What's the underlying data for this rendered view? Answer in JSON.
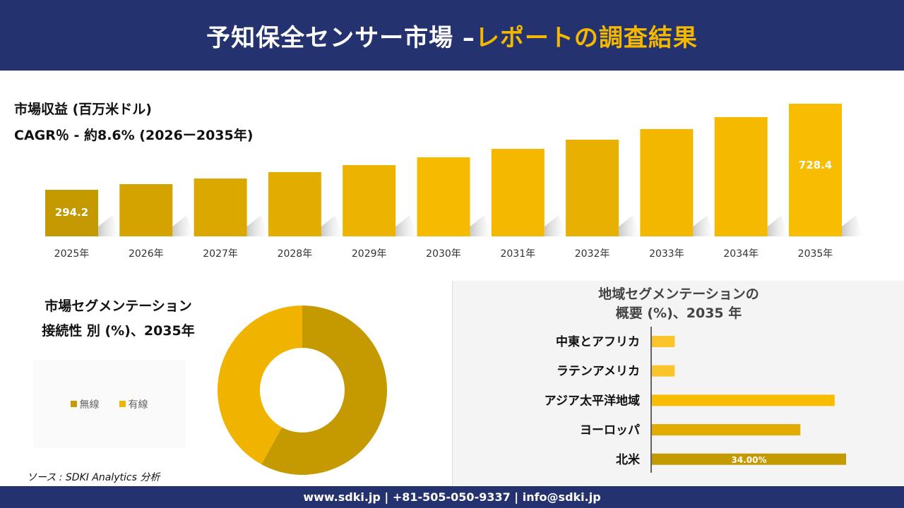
{
  "header": {
    "title_main": "予知保全センサー市場 –",
    "title_accent": "レポートの調査結果"
  },
  "revenue": {
    "title": "市場収益 (百万米ドル)",
    "cagr": "CAGR％ - 約8.6% (2026ー2035年)"
  },
  "segment": {
    "title_line1": "市場セグメンテーション",
    "title_line2": "接続性 別 (%)、2035年",
    "source": "ソース : SDKI Analytics 分析"
  },
  "region": {
    "title_line1": "地域セグメンテーションの",
    "title_line2": "概要 (%)、2035 年"
  },
  "footer": {
    "contact": "www.sdki.jp | +81-505-050-9337 | info@sdki.jp"
  },
  "colors": {
    "header_bg": "#243270",
    "accent": "#f5b800",
    "dark_gold": "#c49a00",
    "gold": "#f0b400"
  },
  "chart_data": [
    {
      "type": "bar",
      "title": "市場収益 (百万米ドル)",
      "categories": [
        "2025年",
        "2026年",
        "2027年",
        "2028年",
        "2029年",
        "2030年",
        "2031年",
        "2032年",
        "2033年",
        "2034年",
        "2035年"
      ],
      "values": [
        294.2,
        322.7,
        351.1,
        383.2,
        418.8,
        457.9,
        500.6,
        546.9,
        600.3,
        660.8,
        728.4
      ],
      "data_labels": {
        "0": "294.2",
        "10": "728.4"
      },
      "colors": [
        "#c49a00",
        "#d4a300",
        "#dba800",
        "#e3ad00",
        "#ecb300",
        "#f6bb00",
        "#f5b800",
        "#e8b000",
        "#f3b700",
        "#f5b900",
        "#f8bd00"
      ]
    },
    {
      "type": "pie",
      "variant": "donut",
      "categories": [
        "無線",
        "有線"
      ],
      "values": [
        58,
        42
      ],
      "colors": [
        "#c49a00",
        "#f0b400"
      ],
      "legend": "left"
    },
    {
      "type": "bar",
      "orientation": "horizontal",
      "categories": [
        "中東とアフリカ",
        "ラテンアメリカ",
        "アジア太平洋地域",
        "ヨーロッパ",
        "北米"
      ],
      "values": [
        4,
        4,
        32,
        26,
        34
      ],
      "data_labels": {
        "4": "34.00%"
      },
      "colors": [
        "#fbc42a",
        "#fbc42a",
        "#f8bd00",
        "#e2ab00",
        "#c49a00"
      ]
    }
  ]
}
